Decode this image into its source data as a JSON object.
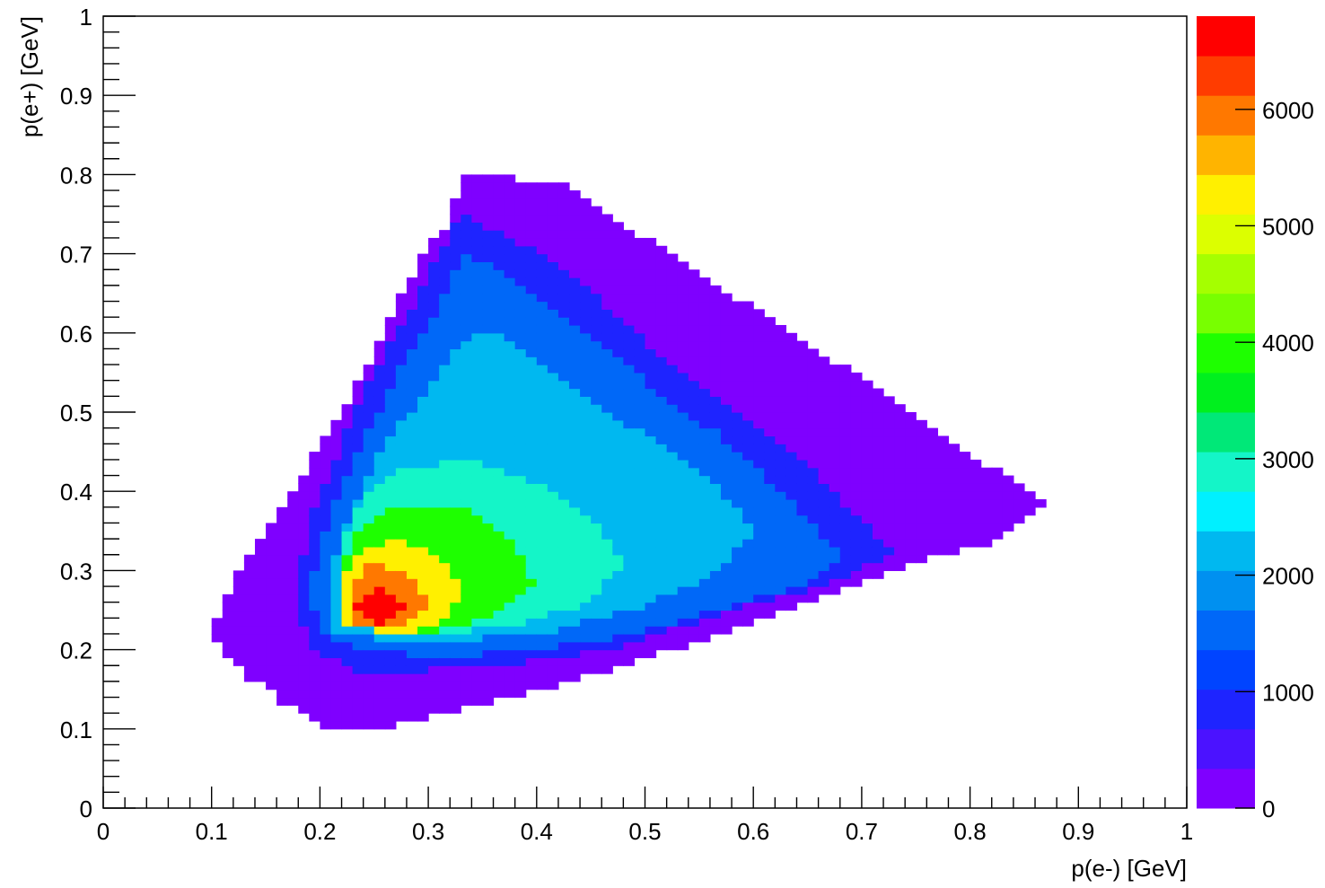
{
  "chart_data": {
    "type": "heatmap",
    "title": "",
    "xlabel": "p(e-) [GeV]",
    "ylabel": "p(e+) [GeV]",
    "xlim": [
      0,
      1
    ],
    "ylim": [
      0,
      1
    ],
    "xticks": [
      "0",
      "0.1",
      "0.2",
      "0.3",
      "0.4",
      "0.5",
      "0.6",
      "0.7",
      "0.8",
      "0.9",
      "1"
    ],
    "yticks": [
      "0",
      "0.1",
      "0.2",
      "0.3",
      "0.4",
      "0.5",
      "0.6",
      "0.7",
      "0.8",
      "0.9",
      "1"
    ],
    "grid": false,
    "bins": [
      100,
      100
    ],
    "colorbar": {
      "range": [
        0,
        6800
      ],
      "tick_values": [
        0,
        1000,
        2000,
        3000,
        4000,
        5000,
        6000
      ],
      "tick_labels": [
        "0",
        "1000",
        "2000",
        "3000",
        "4000",
        "5000",
        "6000"
      ],
      "colors": [
        "#7f00ff",
        "#4b12ff",
        "#1e24ff",
        "#0044ff",
        "#0068f8",
        "#0090f0",
        "#00b8f0",
        "#00f0ff",
        "#14f5c8",
        "#00e878",
        "#00f01e",
        "#1eff00",
        "#78ff00",
        "#a5ff00",
        "#dcff00",
        "#fff000",
        "#ffb400",
        "#ff7800",
        "#ff3c00",
        "#ff0000"
      ]
    },
    "max_value_region": {
      "x": [
        0.23,
        0.29
      ],
      "y": [
        0.23,
        0.29
      ],
      "value": 6800
    },
    "density_regions": [
      {
        "name": "outer",
        "value": 150,
        "boundary": [
          [
            0.1,
            0.22
          ],
          [
            0.13,
            0.17
          ],
          [
            0.17,
            0.13
          ],
          [
            0.21,
            0.1
          ],
          [
            0.25,
            0.1
          ],
          [
            0.32,
            0.12
          ],
          [
            0.43,
            0.16
          ],
          [
            0.55,
            0.21
          ],
          [
            0.65,
            0.26
          ],
          [
            0.75,
            0.31
          ],
          [
            0.83,
            0.34
          ],
          [
            0.87,
            0.39
          ],
          [
            0.82,
            0.43
          ],
          [
            0.76,
            0.49
          ],
          [
            0.68,
            0.56
          ],
          [
            0.59,
            0.64
          ],
          [
            0.5,
            0.72
          ],
          [
            0.43,
            0.79
          ],
          [
            0.33,
            0.8
          ],
          [
            0.32,
            0.74
          ],
          [
            0.29,
            0.69
          ],
          [
            0.26,
            0.6
          ],
          [
            0.22,
            0.5
          ],
          [
            0.17,
            0.39
          ],
          [
            0.13,
            0.31
          ]
        ]
      },
      {
        "name": "ridge",
        "value": 800,
        "boundary": [
          [
            0.19,
            0.2
          ],
          [
            0.24,
            0.17
          ],
          [
            0.36,
            0.18
          ],
          [
            0.47,
            0.2
          ],
          [
            0.58,
            0.25
          ],
          [
            0.66,
            0.28
          ],
          [
            0.73,
            0.32
          ],
          [
            0.71,
            0.35
          ],
          [
            0.66,
            0.42
          ],
          [
            0.58,
            0.51
          ],
          [
            0.5,
            0.59
          ],
          [
            0.42,
            0.69
          ],
          [
            0.33,
            0.75
          ],
          [
            0.31,
            0.7
          ],
          [
            0.28,
            0.62
          ],
          [
            0.25,
            0.55
          ],
          [
            0.22,
            0.46
          ],
          [
            0.19,
            0.36
          ],
          [
            0.18,
            0.27
          ]
        ]
      },
      {
        "name": "inner",
        "value": 1600,
        "boundary": [
          [
            0.21,
            0.21
          ],
          [
            0.3,
            0.19
          ],
          [
            0.4,
            0.2
          ],
          [
            0.49,
            0.22
          ],
          [
            0.59,
            0.26
          ],
          [
            0.66,
            0.29
          ],
          [
            0.68,
            0.32
          ],
          [
            0.64,
            0.38
          ],
          [
            0.58,
            0.46
          ],
          [
            0.5,
            0.54
          ],
          [
            0.43,
            0.62
          ],
          [
            0.36,
            0.69
          ],
          [
            0.33,
            0.7
          ],
          [
            0.31,
            0.63
          ],
          [
            0.28,
            0.57
          ],
          [
            0.25,
            0.49
          ],
          [
            0.22,
            0.41
          ],
          [
            0.2,
            0.33
          ],
          [
            0.19,
            0.26
          ]
        ]
      },
      {
        "name": "plateau",
        "value": 2200,
        "boundary": [
          [
            0.21,
            0.22
          ],
          [
            0.3,
            0.21
          ],
          [
            0.4,
            0.22
          ],
          [
            0.49,
            0.25
          ],
          [
            0.57,
            0.3
          ],
          [
            0.6,
            0.35
          ],
          [
            0.56,
            0.42
          ],
          [
            0.49,
            0.48
          ],
          [
            0.42,
            0.55
          ],
          [
            0.36,
            0.6
          ],
          [
            0.33,
            0.59
          ],
          [
            0.3,
            0.53
          ],
          [
            0.26,
            0.46
          ],
          [
            0.23,
            0.38
          ],
          [
            0.21,
            0.3
          ]
        ]
      },
      {
        "name": "mid",
        "value": 3000,
        "boundary": [
          [
            0.22,
            0.23
          ],
          [
            0.3,
            0.22
          ],
          [
            0.38,
            0.23
          ],
          [
            0.45,
            0.26
          ],
          [
            0.48,
            0.31
          ],
          [
            0.45,
            0.37
          ],
          [
            0.4,
            0.41
          ],
          [
            0.34,
            0.44
          ],
          [
            0.28,
            0.43
          ],
          [
            0.24,
            0.39
          ],
          [
            0.22,
            0.33
          ]
        ]
      },
      {
        "name": "green",
        "value": 3800,
        "boundary": [
          [
            0.22,
            0.23
          ],
          [
            0.29,
            0.22
          ],
          [
            0.36,
            0.24
          ],
          [
            0.4,
            0.28
          ],
          [
            0.38,
            0.34
          ],
          [
            0.33,
            0.38
          ],
          [
            0.27,
            0.38
          ],
          [
            0.23,
            0.35
          ],
          [
            0.22,
            0.29
          ]
        ]
      },
      {
        "name": "yellow",
        "value": 5100,
        "boundary": [
          [
            0.22,
            0.23
          ],
          [
            0.28,
            0.22
          ],
          [
            0.32,
            0.24
          ],
          [
            0.33,
            0.28
          ],
          [
            0.31,
            0.32
          ],
          [
            0.27,
            0.34
          ],
          [
            0.23,
            0.32
          ],
          [
            0.22,
            0.27
          ]
        ]
      },
      {
        "name": "orange",
        "value": 6000,
        "boundary": [
          [
            0.23,
            0.23
          ],
          [
            0.28,
            0.23
          ],
          [
            0.3,
            0.26
          ],
          [
            0.28,
            0.3
          ],
          [
            0.25,
            0.31
          ],
          [
            0.23,
            0.29
          ]
        ]
      }
    ]
  }
}
